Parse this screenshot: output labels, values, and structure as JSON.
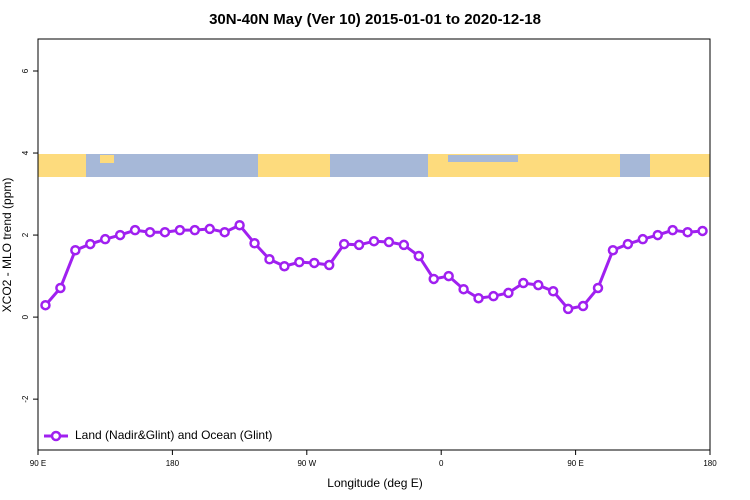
{
  "chart_data": {
    "type": "line",
    "title": "30N-40N May (Ver 10)   2015-01-01 to 2020-12-18",
    "x_label": "Longitude (deg E)",
    "y_label": "XCO2 - MLO trend (ppm)",
    "x": [
      95,
      105,
      115,
      125,
      135,
      145,
      155,
      165,
      175,
      185,
      195,
      205,
      215,
      225,
      235,
      245,
      255,
      265,
      275,
      285,
      295,
      305,
      315,
      325,
      335,
      345,
      355,
      365,
      375,
      385,
      395,
      405,
      415,
      425,
      435,
      445,
      455,
      465,
      475,
      485,
      495,
      505,
      515,
      525,
      535
    ],
    "series": [
      {
        "name": "Land (Nadir&Glint) and Ocean (Glint)",
        "color": "#a020f0",
        "values": [
          0.29,
          0.71,
          1.63,
          1.78,
          1.9,
          2.0,
          2.12,
          2.07,
          2.07,
          2.12,
          2.12,
          2.15,
          2.07,
          2.24,
          1.8,
          1.41,
          1.24,
          1.34,
          1.32,
          1.27,
          1.78,
          1.76,
          1.85,
          1.83,
          1.76,
          1.49,
          0.93,
          1.0,
          0.68,
          0.46,
          0.51,
          0.59,
          0.83,
          0.78,
          0.63,
          0.2,
          0.27,
          0.71,
          1.63,
          1.78,
          1.9,
          2.0,
          2.12,
          2.07,
          2.1
        ]
      }
    ],
    "xlim": [
      90,
      540
    ],
    "xticks": [
      {
        "value": 90,
        "label": "90 E"
      },
      180,
      {
        "value": 270,
        "label": "90 W"
      },
      {
        "value": 360,
        "label": "0"
      },
      {
        "value": 450,
        "label": "90 E"
      },
      {
        "value": 540,
        "label": "180"
      }
    ],
    "ylim": [
      -3.24,
      6.78
    ],
    "yticks": [
      -2,
      0,
      2,
      4,
      6
    ],
    "grid": false,
    "legend": "bottom-left"
  }
}
